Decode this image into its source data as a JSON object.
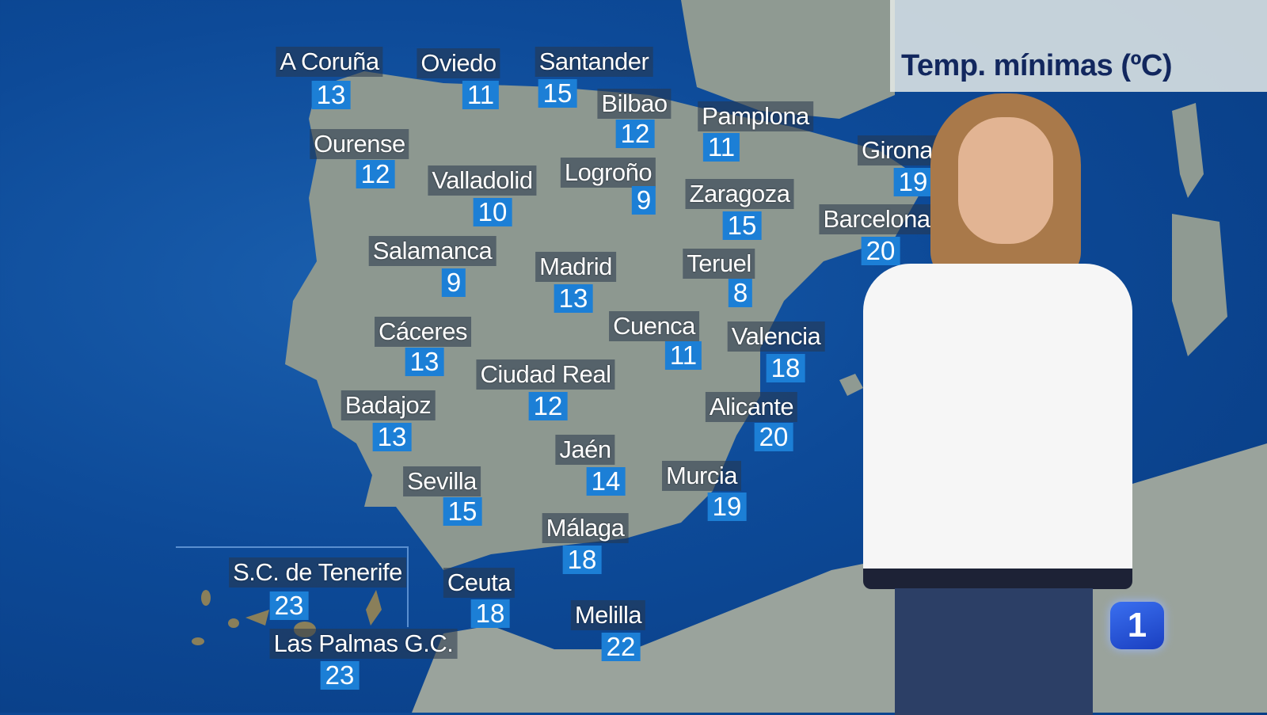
{
  "title": "Temp. mínimas (ºC)",
  "logo": "1",
  "colors": {
    "sea": "#0d4a98",
    "land": "#8f9a92",
    "temp_box": "#1c7fd6",
    "title_text": "#12275e"
  },
  "cities": [
    {
      "name": "A Coruña",
      "temp": "13"
    },
    {
      "name": "Oviedo",
      "temp": "11"
    },
    {
      "name": "Santander",
      "temp": "15"
    },
    {
      "name": "Bilbao",
      "temp": "12"
    },
    {
      "name": "Pamplona",
      "temp": "11"
    },
    {
      "name": "Ourense",
      "temp": "12"
    },
    {
      "name": "Valladolid",
      "temp": "10"
    },
    {
      "name": "Logroño",
      "temp": "9"
    },
    {
      "name": "Zaragoza",
      "temp": "15"
    },
    {
      "name": "Girona",
      "temp": "19"
    },
    {
      "name": "Barcelona",
      "temp": "20"
    },
    {
      "name": "Salamanca",
      "temp": "9"
    },
    {
      "name": "Madrid",
      "temp": "13"
    },
    {
      "name": "Teruel",
      "temp": "8"
    },
    {
      "name": "Cáceres",
      "temp": "13"
    },
    {
      "name": "Cuenca",
      "temp": "11"
    },
    {
      "name": "Valencia",
      "temp": "18"
    },
    {
      "name": "Ciudad Real",
      "temp": "12"
    },
    {
      "name": "Badajoz",
      "temp": "13"
    },
    {
      "name": "Alicante",
      "temp": "20"
    },
    {
      "name": "Jaén",
      "temp": "14"
    },
    {
      "name": "Sevilla",
      "temp": "15"
    },
    {
      "name": "Murcia",
      "temp": "19"
    },
    {
      "name": "Málaga",
      "temp": "18"
    },
    {
      "name": "S.C. de Tenerife",
      "temp": "23"
    },
    {
      "name": "Ceuta",
      "temp": "18"
    },
    {
      "name": "Melilla",
      "temp": "22"
    },
    {
      "name": "Las Palmas G.C.",
      "temp": "23"
    }
  ]
}
